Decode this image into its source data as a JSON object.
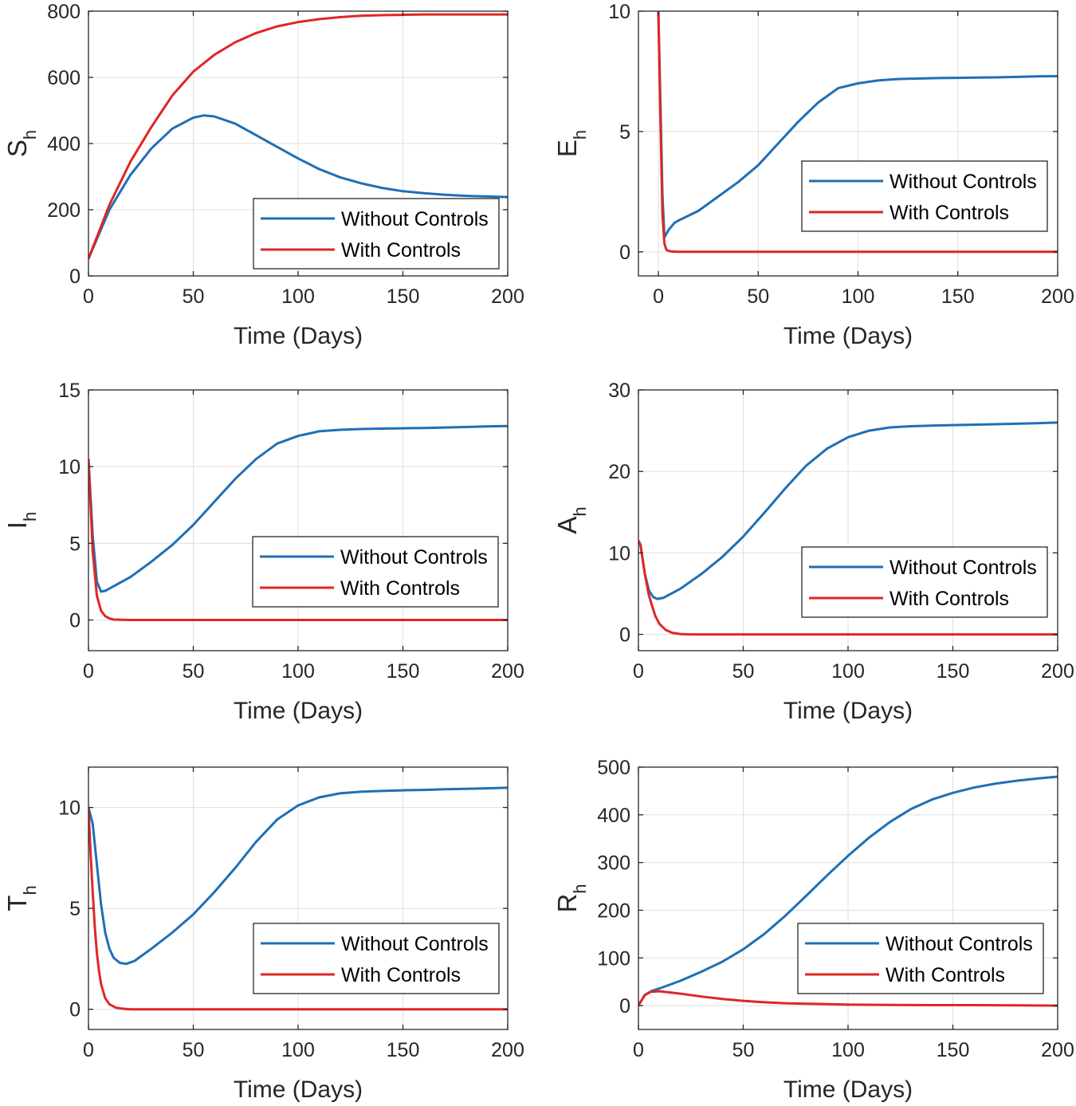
{
  "figure": {
    "background": "#ffffff",
    "axis_color": "#262626",
    "grid_color": "#dfdfdf",
    "legend_border_color": "#262626"
  },
  "chart_data": [
    {
      "id": "sh",
      "type": "line",
      "ylabel": {
        "main": "S",
        "sub": "h"
      },
      "xlabel": "Time (Days)",
      "xlim": [
        0,
        200
      ],
      "ylim": [
        0,
        800
      ],
      "xticks": [
        0,
        50,
        100,
        150,
        200
      ],
      "yticks": [
        0,
        200,
        400,
        600,
        800
      ],
      "grid": true,
      "legend": {
        "placement": "bottom-right",
        "entries": [
          "Without Controls",
          "With Controls"
        ]
      },
      "series": [
        {
          "name": "Without Controls",
          "color": "#1f6fb5",
          "x": [
            0,
            10,
            20,
            30,
            40,
            50,
            55,
            60,
            70,
            80,
            90,
            100,
            110,
            120,
            130,
            140,
            150,
            160,
            170,
            180,
            190,
            200
          ],
          "y": [
            52,
            200,
            305,
            385,
            445,
            478,
            485,
            482,
            460,
            425,
            390,
            355,
            323,
            298,
            280,
            266,
            256,
            250,
            245,
            242,
            240,
            238
          ]
        },
        {
          "name": "With Controls",
          "color": "#e02626",
          "x": [
            0,
            10,
            20,
            30,
            40,
            50,
            60,
            70,
            80,
            90,
            100,
            110,
            120,
            130,
            140,
            150,
            160,
            170,
            180,
            190,
            200
          ],
          "y": [
            52,
            215,
            345,
            450,
            545,
            617,
            668,
            706,
            734,
            754,
            767,
            776,
            782,
            786,
            788,
            789,
            790,
            790,
            790,
            790,
            790
          ]
        }
      ]
    },
    {
      "id": "eh",
      "type": "line",
      "ylabel": {
        "main": "E",
        "sub": "h"
      },
      "xlabel": "Time (Days)",
      "xlim": [
        -10,
        200
      ],
      "ylim": [
        -1,
        10
      ],
      "xticks": [
        0,
        50,
        100,
        150,
        200
      ],
      "yticks": [
        0,
        5,
        10
      ],
      "grid": true,
      "legend": {
        "placement": "right",
        "entries": [
          "Without Controls",
          "With Controls"
        ]
      },
      "series": [
        {
          "name": "Without Controls",
          "color": "#1f6fb5",
          "x": [
            0,
            1,
            2,
            3,
            5,
            8,
            10,
            20,
            30,
            40,
            50,
            60,
            70,
            80,
            90,
            100,
            110,
            120,
            130,
            140,
            150,
            160,
            170,
            180,
            190,
            200
          ],
          "y": [
            10,
            6.2,
            2.4,
            0.6,
            0.9,
            1.2,
            1.3,
            1.7,
            2.3,
            2.9,
            3.6,
            4.5,
            5.4,
            6.2,
            6.8,
            7.0,
            7.12,
            7.18,
            7.2,
            7.22,
            7.23,
            7.24,
            7.25,
            7.27,
            7.29,
            7.3
          ]
        },
        {
          "name": "With Controls",
          "color": "#e02626",
          "x": [
            0,
            1,
            2,
            3,
            4,
            6,
            10,
            20,
            50,
            100,
            150,
            200
          ],
          "y": [
            10,
            5.5,
            1.6,
            0.35,
            0.08,
            0.02,
            0.0,
            0.0,
            0.0,
            0.0,
            0.0,
            0.0
          ]
        }
      ]
    },
    {
      "id": "ih",
      "type": "line",
      "ylabel": {
        "main": "I",
        "sub": "h"
      },
      "xlabel": "Time (Days)",
      "xlim": [
        0,
        200
      ],
      "ylim": [
        -2,
        15
      ],
      "xticks": [
        0,
        50,
        100,
        150,
        200
      ],
      "yticks": [
        0,
        5,
        10,
        15
      ],
      "grid": true,
      "legend": {
        "placement": "right",
        "entries": [
          "Without Controls",
          "With Controls"
        ]
      },
      "series": [
        {
          "name": "Without Controls",
          "color": "#1f6fb5",
          "x": [
            0,
            2,
            4,
            6,
            8,
            10,
            20,
            30,
            40,
            50,
            60,
            70,
            80,
            90,
            100,
            110,
            120,
            130,
            140,
            150,
            160,
            170,
            180,
            190,
            200
          ],
          "y": [
            10.5,
            5.5,
            2.5,
            1.85,
            1.9,
            2.05,
            2.8,
            3.8,
            4.9,
            6.2,
            7.7,
            9.2,
            10.5,
            11.5,
            12.0,
            12.3,
            12.4,
            12.45,
            12.48,
            12.5,
            12.52,
            12.55,
            12.58,
            12.62,
            12.65
          ]
        },
        {
          "name": "With Controls",
          "color": "#e02626",
          "x": [
            0,
            2,
            4,
            6,
            8,
            10,
            12,
            20,
            50,
            100,
            150,
            200
          ],
          "y": [
            10.5,
            4.5,
            1.6,
            0.6,
            0.25,
            0.1,
            0.03,
            0.0,
            0.0,
            0.0,
            0.0,
            0.0
          ]
        }
      ]
    },
    {
      "id": "ah",
      "type": "line",
      "ylabel": {
        "main": "A",
        "sub": "h"
      },
      "xlabel": "Time (Days)",
      "xlim": [
        0,
        200
      ],
      "ylim": [
        -2,
        30
      ],
      "xticks": [
        0,
        50,
        100,
        150,
        200
      ],
      "yticks": [
        0,
        10,
        20,
        30
      ],
      "grid": true,
      "legend": {
        "placement": "right",
        "entries": [
          "Without Controls",
          "With Controls"
        ]
      },
      "series": [
        {
          "name": "Without Controls",
          "color": "#1f6fb5",
          "x": [
            0,
            1,
            3,
            5,
            7,
            9,
            12,
            20,
            30,
            40,
            50,
            60,
            70,
            80,
            90,
            100,
            110,
            120,
            130,
            140,
            150,
            160,
            170,
            180,
            190,
            200
          ],
          "y": [
            11.5,
            11.0,
            7.5,
            5.4,
            4.6,
            4.35,
            4.5,
            5.6,
            7.4,
            9.5,
            12.0,
            14.9,
            17.9,
            20.7,
            22.8,
            24.2,
            25.0,
            25.4,
            25.55,
            25.62,
            25.68,
            25.73,
            25.79,
            25.85,
            25.92,
            26.0
          ]
        },
        {
          "name": "With Controls",
          "color": "#e02626",
          "x": [
            0,
            1,
            3,
            5,
            8,
            10,
            13,
            16,
            20,
            25,
            50,
            100,
            150,
            200
          ],
          "y": [
            11.5,
            11.0,
            7.5,
            4.8,
            2.3,
            1.3,
            0.55,
            0.2,
            0.05,
            0.0,
            0.0,
            0.0,
            0.0,
            0.0
          ]
        }
      ]
    },
    {
      "id": "th",
      "type": "line",
      "ylabel": {
        "main": "T",
        "sub": "h"
      },
      "xlabel": "Time (Days)",
      "xlim": [
        0,
        200
      ],
      "ylim": [
        -1,
        12
      ],
      "xticks": [
        0,
        50,
        100,
        150,
        200
      ],
      "yticks": [
        0,
        5,
        10
      ],
      "grid": true,
      "legend": {
        "placement": "bottom-right",
        "entries": [
          "Without Controls",
          "With Controls"
        ]
      },
      "series": [
        {
          "name": "Without Controls",
          "color": "#1f6fb5",
          "x": [
            0,
            2,
            4,
            6,
            8,
            10,
            12,
            15,
            18,
            22,
            30,
            40,
            50,
            60,
            70,
            80,
            90,
            100,
            110,
            120,
            130,
            140,
            150,
            160,
            170,
            180,
            190,
            200
          ],
          "y": [
            10,
            9.2,
            7.2,
            5.2,
            3.8,
            3.0,
            2.55,
            2.3,
            2.25,
            2.4,
            3.0,
            3.8,
            4.7,
            5.8,
            7.0,
            8.3,
            9.4,
            10.1,
            10.5,
            10.7,
            10.78,
            10.82,
            10.85,
            10.87,
            10.9,
            10.92,
            10.95,
            10.98
          ]
        },
        {
          "name": "With Controls",
          "color": "#e02626",
          "x": [
            0,
            1,
            2,
            3,
            4,
            5,
            6,
            8,
            10,
            13,
            16,
            20,
            30,
            50,
            100,
            150,
            200
          ],
          "y": [
            10,
            7.8,
            5.8,
            4.1,
            2.8,
            1.9,
            1.25,
            0.55,
            0.25,
            0.08,
            0.03,
            0.0,
            0.0,
            0.0,
            0.0,
            0.0,
            0.0
          ]
        }
      ]
    },
    {
      "id": "rh",
      "type": "line",
      "ylabel": {
        "main": "R",
        "sub": "h"
      },
      "xlabel": "Time (Days)",
      "xlim": [
        0,
        200
      ],
      "ylim": [
        -50,
        500
      ],
      "xticks": [
        0,
        50,
        100,
        150,
        200
      ],
      "yticks": [
        0,
        100,
        200,
        300,
        400,
        500
      ],
      "grid": true,
      "legend": {
        "placement": "bottom-right",
        "entries": [
          "Without Controls",
          "With Controls"
        ]
      },
      "series": [
        {
          "name": "Without Controls",
          "color": "#1f6fb5",
          "x": [
            0,
            3,
            6,
            10,
            20,
            30,
            40,
            50,
            60,
            70,
            80,
            90,
            100,
            110,
            120,
            130,
            140,
            150,
            160,
            170,
            180,
            190,
            200
          ],
          "y": [
            0,
            22,
            30,
            36,
            52,
            71,
            92,
            118,
            150,
            188,
            230,
            273,
            314,
            352,
            385,
            412,
            432,
            446,
            457,
            465,
            471,
            476,
            480
          ]
        },
        {
          "name": "With Controls",
          "color": "#e02626",
          "x": [
            0,
            3,
            6,
            10,
            20,
            30,
            40,
            50,
            60,
            70,
            80,
            90,
            100,
            120,
            140,
            160,
            180,
            200
          ],
          "y": [
            0,
            22,
            29,
            30,
            25,
            19,
            14,
            10,
            7,
            5,
            4,
            3,
            2,
            1.5,
            1,
            1,
            0.5,
            0
          ]
        }
      ]
    }
  ]
}
